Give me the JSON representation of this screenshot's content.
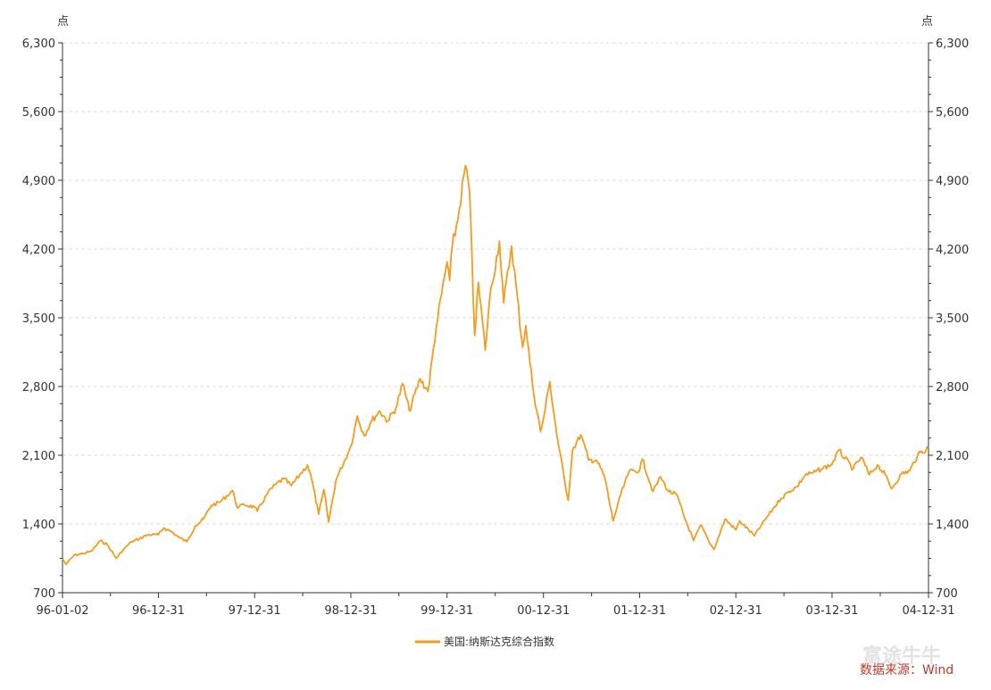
{
  "chart_data": {
    "type": "line",
    "y_unit_left": "点",
    "y_unit_right": "点",
    "ylim": [
      700,
      6300
    ],
    "y_ticks": [
      700,
      1400,
      2100,
      2800,
      3500,
      4200,
      4900,
      5600,
      6300
    ],
    "y_tick_labels": [
      "700",
      "1,400",
      "2,100",
      "2,800",
      "3,500",
      "4,200",
      "4,900",
      "5,600",
      "6,300"
    ],
    "x_tick_labels": [
      "96-01-02",
      "96-12-31",
      "97-12-31",
      "98-12-31",
      "99-12-31",
      "00-12-31",
      "01-12-31",
      "02-12-31",
      "03-12-31",
      "04-12-31"
    ],
    "x_tick_dates": [
      "1996-01-02",
      "1996-12-31",
      "1997-12-31",
      "1998-12-31",
      "1999-12-31",
      "2000-12-31",
      "2001-12-31",
      "2002-12-31",
      "2003-12-31",
      "2004-12-31"
    ],
    "xlim": [
      "1996-01-02",
      "2004-12-31"
    ],
    "grid": true,
    "legend_position": "bottom-center",
    "series": [
      {
        "name": "美国:纳斯达克综合指数",
        "color": "#f39c1f",
        "points": [
          [
            "1996-01-02",
            1050
          ],
          [
            "1996-01-15",
            990
          ],
          [
            "1996-02-15",
            1080
          ],
          [
            "1996-03-20",
            1100
          ],
          [
            "1996-04-20",
            1120
          ],
          [
            "1996-05-25",
            1230
          ],
          [
            "1996-06-20",
            1190
          ],
          [
            "1996-07-24",
            1050
          ],
          [
            "1996-08-20",
            1140
          ],
          [
            "1996-09-20",
            1220
          ],
          [
            "1996-10-20",
            1250
          ],
          [
            "1996-11-20",
            1290
          ],
          [
            "1996-12-31",
            1290
          ],
          [
            "1997-01-20",
            1360
          ],
          [
            "1997-02-20",
            1320
          ],
          [
            "1997-03-20",
            1260
          ],
          [
            "1997-04-18",
            1220
          ],
          [
            "1997-05-20",
            1380
          ],
          [
            "1997-06-20",
            1450
          ],
          [
            "1997-07-20",
            1590
          ],
          [
            "1997-08-20",
            1620
          ],
          [
            "1997-10-08",
            1740
          ],
          [
            "1997-10-28",
            1560
          ],
          [
            "1997-11-20",
            1600
          ],
          [
            "1997-12-31",
            1570
          ],
          [
            "1998-01-10",
            1530
          ],
          [
            "1998-02-20",
            1720
          ],
          [
            "1998-03-20",
            1800
          ],
          [
            "1998-04-20",
            1860
          ],
          [
            "1998-05-20",
            1790
          ],
          [
            "1998-06-20",
            1900
          ],
          [
            "1998-07-20",
            2000
          ],
          [
            "1998-08-05",
            1850
          ],
          [
            "1998-08-31",
            1500
          ],
          [
            "1998-09-20",
            1750
          ],
          [
            "1998-10-08",
            1420
          ],
          [
            "1998-11-05",
            1850
          ],
          [
            "1998-12-31",
            2190
          ],
          [
            "1999-01-25",
            2500
          ],
          [
            "1999-02-20",
            2300
          ],
          [
            "1999-03-20",
            2450
          ],
          [
            "1999-04-20",
            2550
          ],
          [
            "1999-05-20",
            2450
          ],
          [
            "1999-06-20",
            2580
          ],
          [
            "1999-07-16",
            2830
          ],
          [
            "1999-08-10",
            2550
          ],
          [
            "1999-09-20",
            2880
          ],
          [
            "1999-10-20",
            2750
          ],
          [
            "1999-11-20",
            3400
          ],
          [
            "1999-12-31",
            4070
          ],
          [
            "2000-01-10",
            3880
          ],
          [
            "2000-01-20",
            4230
          ],
          [
            "2000-02-10",
            4500
          ],
          [
            "2000-03-10",
            5050
          ],
          [
            "2000-03-25",
            4800
          ],
          [
            "2000-04-14",
            3320
          ],
          [
            "2000-04-28",
            3860
          ],
          [
            "2000-05-24",
            3170
          ],
          [
            "2000-06-10",
            3700
          ],
          [
            "2000-07-17",
            4280
          ],
          [
            "2000-08-02",
            3650
          ],
          [
            "2000-09-01",
            4230
          ],
          [
            "2000-10-13",
            3200
          ],
          [
            "2000-10-25",
            3420
          ],
          [
            "2000-11-20",
            2800
          ],
          [
            "2000-12-20",
            2340
          ],
          [
            "2000-12-31",
            2470
          ],
          [
            "2001-01-24",
            2850
          ],
          [
            "2001-02-20",
            2300
          ],
          [
            "2001-03-22",
            1830
          ],
          [
            "2001-04-04",
            1640
          ],
          [
            "2001-04-20",
            2150
          ],
          [
            "2001-05-22",
            2310
          ],
          [
            "2001-06-20",
            2050
          ],
          [
            "2001-07-20",
            2050
          ],
          [
            "2001-08-20",
            1880
          ],
          [
            "2001-09-21",
            1430
          ],
          [
            "2001-10-20",
            1700
          ],
          [
            "2001-11-20",
            1930
          ],
          [
            "2001-12-31",
            1950
          ],
          [
            "2002-01-10",
            2060
          ],
          [
            "2002-02-20",
            1730
          ],
          [
            "2002-03-20",
            1880
          ],
          [
            "2002-04-20",
            1730
          ],
          [
            "2002-05-20",
            1700
          ],
          [
            "2002-06-20",
            1460
          ],
          [
            "2002-07-24",
            1230
          ],
          [
            "2002-08-20",
            1390
          ],
          [
            "2002-09-20",
            1220
          ],
          [
            "2002-10-09",
            1140
          ],
          [
            "2002-11-20",
            1450
          ],
          [
            "2002-12-31",
            1340
          ],
          [
            "2003-01-15",
            1430
          ],
          [
            "2003-03-11",
            1280
          ],
          [
            "2003-04-20",
            1440
          ],
          [
            "2003-05-20",
            1550
          ],
          [
            "2003-06-20",
            1660
          ],
          [
            "2003-07-20",
            1730
          ],
          [
            "2003-08-20",
            1780
          ],
          [
            "2003-09-20",
            1900
          ],
          [
            "2003-10-20",
            1920
          ],
          [
            "2003-11-20",
            1960
          ],
          [
            "2003-12-31",
            2010
          ],
          [
            "2004-01-26",
            2150
          ],
          [
            "2004-03-20",
            1960
          ],
          [
            "2004-04-20",
            2080
          ],
          [
            "2004-05-20",
            1900
          ],
          [
            "2004-06-20",
            2000
          ],
          [
            "2004-07-20",
            1900
          ],
          [
            "2004-08-12",
            1760
          ],
          [
            "2004-09-20",
            1910
          ],
          [
            "2004-10-20",
            1940
          ],
          [
            "2004-11-20",
            2100
          ],
          [
            "2004-12-31",
            2180
          ]
        ]
      }
    ]
  },
  "source_text": "数据来源：Wind",
  "watermark_text": "富途牛牛"
}
